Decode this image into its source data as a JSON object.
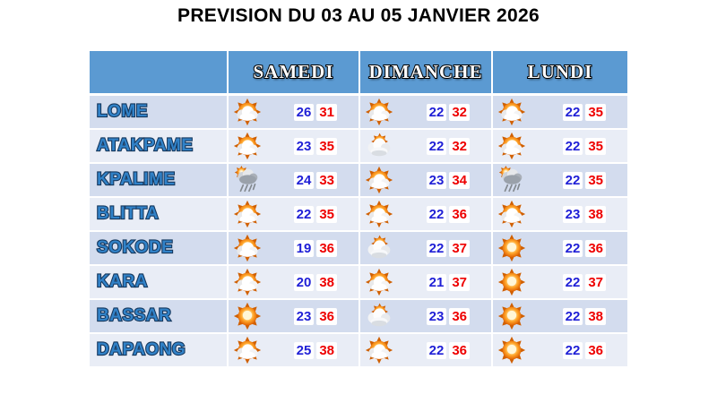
{
  "title": "PREVISION DU 03 AU 05 JANVIER 2026",
  "chart_data": {
    "type": "table",
    "title": "PREVISION DU 03 AU 05 JANVIER 2026",
    "columns": [
      "",
      "SAMEDI",
      "DIMANCHE",
      "LUNDI"
    ],
    "rows": [
      {
        "city": "LOME",
        "days": [
          {
            "icon": "sun-cloud",
            "min": 26,
            "max": 31
          },
          {
            "icon": "sun-cloud",
            "min": 22,
            "max": 32
          },
          {
            "icon": "sun-cloud",
            "min": 22,
            "max": 35
          }
        ]
      },
      {
        "city": "ATAKPAME",
        "days": [
          {
            "icon": "sun-cloud",
            "min": 23,
            "max": 35
          },
          {
            "icon": "cloud-sun",
            "min": 22,
            "max": 32
          },
          {
            "icon": "sun-cloud",
            "min": 22,
            "max": 35
          }
        ]
      },
      {
        "city": "KPALIME",
        "days": [
          {
            "icon": "rain",
            "min": 24,
            "max": 33
          },
          {
            "icon": "sun-cloud",
            "min": 23,
            "max": 34
          },
          {
            "icon": "rain",
            "min": 22,
            "max": 35
          }
        ]
      },
      {
        "city": "BLITTA",
        "days": [
          {
            "icon": "sun-cloud",
            "min": 22,
            "max": 35
          },
          {
            "icon": "sun-cloud",
            "min": 22,
            "max": 36
          },
          {
            "icon": "sun-cloud",
            "min": 23,
            "max": 38
          }
        ]
      },
      {
        "city": "SOKODE",
        "days": [
          {
            "icon": "sun-cloud",
            "min": 19,
            "max": 36
          },
          {
            "icon": "cloud-sun",
            "min": 22,
            "max": 37
          },
          {
            "icon": "sun",
            "min": 22,
            "max": 36
          }
        ]
      },
      {
        "city": "KARA",
        "days": [
          {
            "icon": "sun-cloud",
            "min": 20,
            "max": 38
          },
          {
            "icon": "sun-cloud",
            "min": 21,
            "max": 37
          },
          {
            "icon": "sun",
            "min": 22,
            "max": 37
          }
        ]
      },
      {
        "city": "BASSAR",
        "days": [
          {
            "icon": "sun",
            "min": 23,
            "max": 36
          },
          {
            "icon": "cloud-sun",
            "min": 23,
            "max": 36
          },
          {
            "icon": "sun",
            "min": 22,
            "max": 38
          }
        ]
      },
      {
        "city": "DAPAONG",
        "days": [
          {
            "icon": "sun-cloud",
            "min": 25,
            "max": 38
          },
          {
            "icon": "sun-cloud",
            "min": 22,
            "max": 36
          },
          {
            "icon": "sun",
            "min": 22,
            "max": 36
          }
        ]
      }
    ]
  },
  "colors": {
    "header_bg": "#5b9ad2",
    "row_band_dark": "#d3dcee",
    "row_band_light": "#e9edf6",
    "temp_min": "#1f1fd6",
    "temp_max": "#ee0000",
    "city_text": "#3182c8",
    "title_text": "#000000"
  }
}
